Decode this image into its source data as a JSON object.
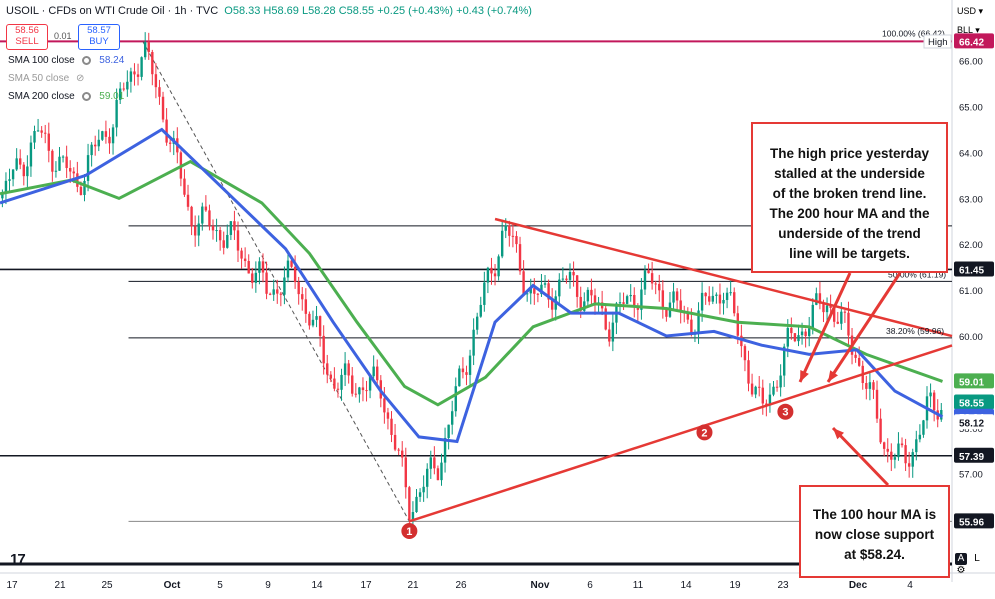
{
  "header": {
    "symbol": "USOIL",
    "description": "CFDs on WTI Crude Oil",
    "interval": "1h",
    "source": "TVC",
    "open": "O58.33",
    "high": "H58.69",
    "low": "L58.28",
    "close": "C58.55",
    "change": "+0.25 (+0.43%)",
    "change2": "+0.43 (+0.74%)",
    "sell_price": "58.56",
    "sell_label": "SELL",
    "spread": "0.01",
    "buy_price": "58.57",
    "buy_label": "BUY"
  },
  "legend": [
    {
      "name": "SMA 100 close",
      "value": "58.24",
      "color": "#3d62e0"
    },
    {
      "name": "SMA 50 close",
      "value": "",
      "color": "#999999"
    },
    {
      "name": "SMA 200 close",
      "value": "59.01",
      "color": "#4caf50"
    }
  ],
  "axis_controls": {
    "currency": "USD",
    "unit": "BLL",
    "high_label": "High"
  },
  "callouts": {
    "top": [
      "The high price yesterday",
      "stalled at the underside",
      "of the broken trend line.",
      "The 200 hour MA and the",
      "underside of the trend",
      "line will be targets."
    ],
    "bottom": [
      "The 100 hour MA is",
      "now close support",
      "at $58.24."
    ]
  },
  "markers": [
    "1",
    "2",
    "3"
  ],
  "fib_labels": {
    "f100": "100.00% (66.42)",
    "f50": "50.00% (61.19)",
    "f382": "38.20% (59.96)"
  },
  "colors": {
    "up": "#089981",
    "down": "#f23645",
    "sma100": "#3d62e0",
    "sma200": "#4caf50",
    "trend": "#e53935",
    "level": "#131722"
  },
  "chart_data": {
    "type": "line",
    "title": "USOIL · CFDs on WTI Crude Oil · 1h · TVC",
    "ylim": [
      54.9,
      66.8
    ],
    "y_ticks": [
      57.0,
      58.0,
      60.0,
      61.0,
      62.0,
      63.0,
      64.0,
      65.0,
      66.0
    ],
    "x_ticks": [
      "17",
      "21",
      "25",
      "Oct",
      "5",
      "9",
      "14",
      "17",
      "21",
      "26",
      "Nov",
      "6",
      "11",
      "14",
      "19",
      "23",
      "Dec",
      "4"
    ],
    "price_labels": [
      {
        "value": 66.42,
        "label": "66.42",
        "color": "#c2185b"
      },
      {
        "value": 61.45,
        "label": "61.45",
        "color": "#131722"
      },
      {
        "value": 59.01,
        "label": "59.01",
        "color": "#4caf50"
      },
      {
        "value": 58.55,
        "label": "58.55",
        "color": "#089981"
      },
      {
        "value": 58.24,
        "label": "58.24",
        "color": "#3d62e0"
      },
      {
        "value": 58.12,
        "label": "58.12",
        "color": "#131722"
      },
      {
        "value": 57.39,
        "label": "57.39",
        "color": "#131722"
      },
      {
        "value": 55.96,
        "label": "55.96",
        "color": "#131722"
      }
    ],
    "horizontal_levels": [
      66.42,
      62.4,
      61.45,
      61.19,
      59.96,
      57.39,
      55.96
    ],
    "price_path": [
      {
        "x": 0,
        "y": 63.0
      },
      {
        "x": 8,
        "y": 64.4
      },
      {
        "x": 16,
        "y": 63.3
      },
      {
        "x": 24,
        "y": 64.8
      },
      {
        "x": 30,
        "y": 66.3
      },
      {
        "x": 34,
        "y": 65.0
      },
      {
        "x": 40,
        "y": 62.6
      },
      {
        "x": 48,
        "y": 62.2
      },
      {
        "x": 56,
        "y": 61.0
      },
      {
        "x": 62,
        "y": 61.3
      },
      {
        "x": 70,
        "y": 59.0
      },
      {
        "x": 80,
        "y": 58.9
      },
      {
        "x": 86,
        "y": 56.3
      },
      {
        "x": 92,
        "y": 57.2
      },
      {
        "x": 100,
        "y": 60.3
      },
      {
        "x": 106,
        "y": 62.4
      },
      {
        "x": 112,
        "y": 60.8
      },
      {
        "x": 120,
        "y": 61.2
      },
      {
        "x": 128,
        "y": 60.3
      },
      {
        "x": 136,
        "y": 61.2
      },
      {
        "x": 145,
        "y": 60.3
      },
      {
        "x": 152,
        "y": 61.1
      },
      {
        "x": 160,
        "y": 58.3
      },
      {
        "x": 166,
        "y": 59.9
      },
      {
        "x": 174,
        "y": 60.8
      },
      {
        "x": 180,
        "y": 59.6
      },
      {
        "x": 186,
        "y": 57.6
      },
      {
        "x": 190,
        "y": 57.2
      },
      {
        "x": 195,
        "y": 58.4
      },
      {
        "x": 198,
        "y": 58.55
      }
    ],
    "series": [
      {
        "name": "SMA 100 close",
        "values": [
          {
            "x": 0,
            "y": 62.9
          },
          {
            "x": 18,
            "y": 63.5
          },
          {
            "x": 34,
            "y": 64.5
          },
          {
            "x": 48,
            "y": 63.1
          },
          {
            "x": 60,
            "y": 61.9
          },
          {
            "x": 70,
            "y": 60.3
          },
          {
            "x": 80,
            "y": 58.8
          },
          {
            "x": 88,
            "y": 57.8
          },
          {
            "x": 96,
            "y": 57.7
          },
          {
            "x": 104,
            "y": 60.3
          },
          {
            "x": 112,
            "y": 61.1
          },
          {
            "x": 120,
            "y": 60.5
          },
          {
            "x": 130,
            "y": 60.5
          },
          {
            "x": 140,
            "y": 60.0
          },
          {
            "x": 150,
            "y": 60.1
          },
          {
            "x": 160,
            "y": 59.8
          },
          {
            "x": 170,
            "y": 59.6
          },
          {
            "x": 180,
            "y": 59.7
          },
          {
            "x": 188,
            "y": 58.8
          },
          {
            "x": 198,
            "y": 58.24
          }
        ]
      },
      {
        "name": "SMA 200 close",
        "values": [
          {
            "x": 0,
            "y": 63.1
          },
          {
            "x": 15,
            "y": 63.4
          },
          {
            "x": 25,
            "y": 63.0
          },
          {
            "x": 40,
            "y": 63.8
          },
          {
            "x": 55,
            "y": 62.9
          },
          {
            "x": 65,
            "y": 61.8
          },
          {
            "x": 75,
            "y": 60.3
          },
          {
            "x": 85,
            "y": 58.9
          },
          {
            "x": 92,
            "y": 58.5
          },
          {
            "x": 102,
            "y": 59.1
          },
          {
            "x": 112,
            "y": 60.2
          },
          {
            "x": 125,
            "y": 60.7
          },
          {
            "x": 140,
            "y": 60.6
          },
          {
            "x": 155,
            "y": 60.3
          },
          {
            "x": 170,
            "y": 60.2
          },
          {
            "x": 182,
            "y": 59.6
          },
          {
            "x": 198,
            "y": 59.01
          }
        ]
      }
    ],
    "trend_lines": [
      {
        "name": "rising trend line",
        "from": {
          "x": 86,
          "y": 55.96
        },
        "to": {
          "x": 215,
          "y": 60.3
        }
      },
      {
        "name": "falling trend line",
        "from": {
          "x": 104,
          "y": 62.55
        },
        "to": {
          "x": 215,
          "y": 59.6
        }
      },
      {
        "name": "dashed trend line",
        "from": {
          "x": 30,
          "y": 66.42
        },
        "to": {
          "x": 86,
          "y": 55.96
        }
      }
    ],
    "marker_points": [
      {
        "label": "1",
        "x": 86,
        "y": 55.75
      },
      {
        "label": "2",
        "x": 148,
        "y": 57.9
      },
      {
        "label": "3",
        "x": 165,
        "y": 58.35
      }
    ]
  }
}
